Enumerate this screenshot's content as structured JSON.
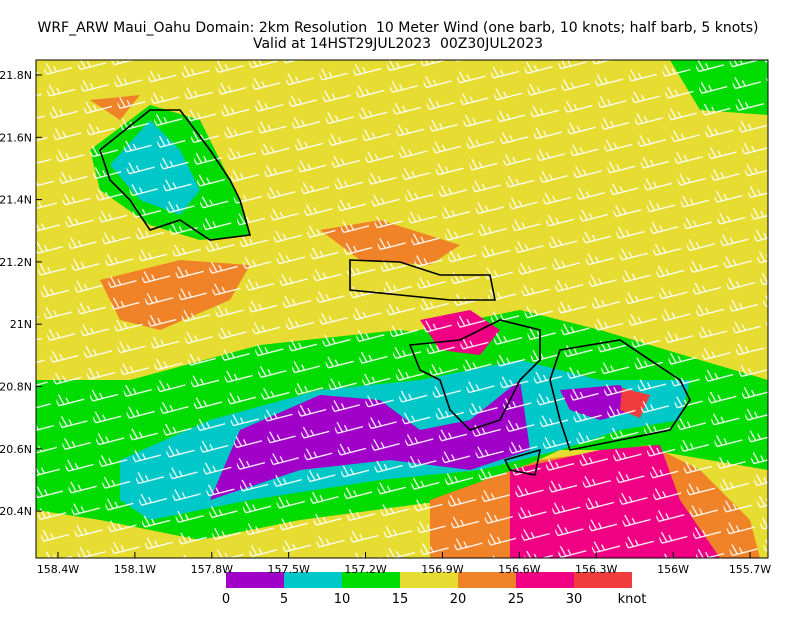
{
  "header": {
    "title_line1": "WRF_ARW Maui_Oahu Domain: 2km Resolution  10 Meter Wind (one barb, 10 knots; half barb, 5 knots)",
    "title_line2": "Valid at 14HST29JUL2023  00Z30JUL2023"
  },
  "map": {
    "lat_labels": [
      "21.8N",
      "21.6N",
      "21.4N",
      "21.2N",
      "21N",
      "20.8N",
      "20.6N",
      "20.4N"
    ],
    "lon_labels": [
      "158.4W",
      "158.1W",
      "157.8W",
      "157.5W",
      "157.2W",
      "156.9W",
      "156.6W",
      "156.3W",
      "156W",
      "155.7W"
    ]
  },
  "colorbar": {
    "labels": [
      "0",
      "5",
      "10",
      "15",
      "20",
      "25",
      "30"
    ],
    "unit": "knot"
  }
}
